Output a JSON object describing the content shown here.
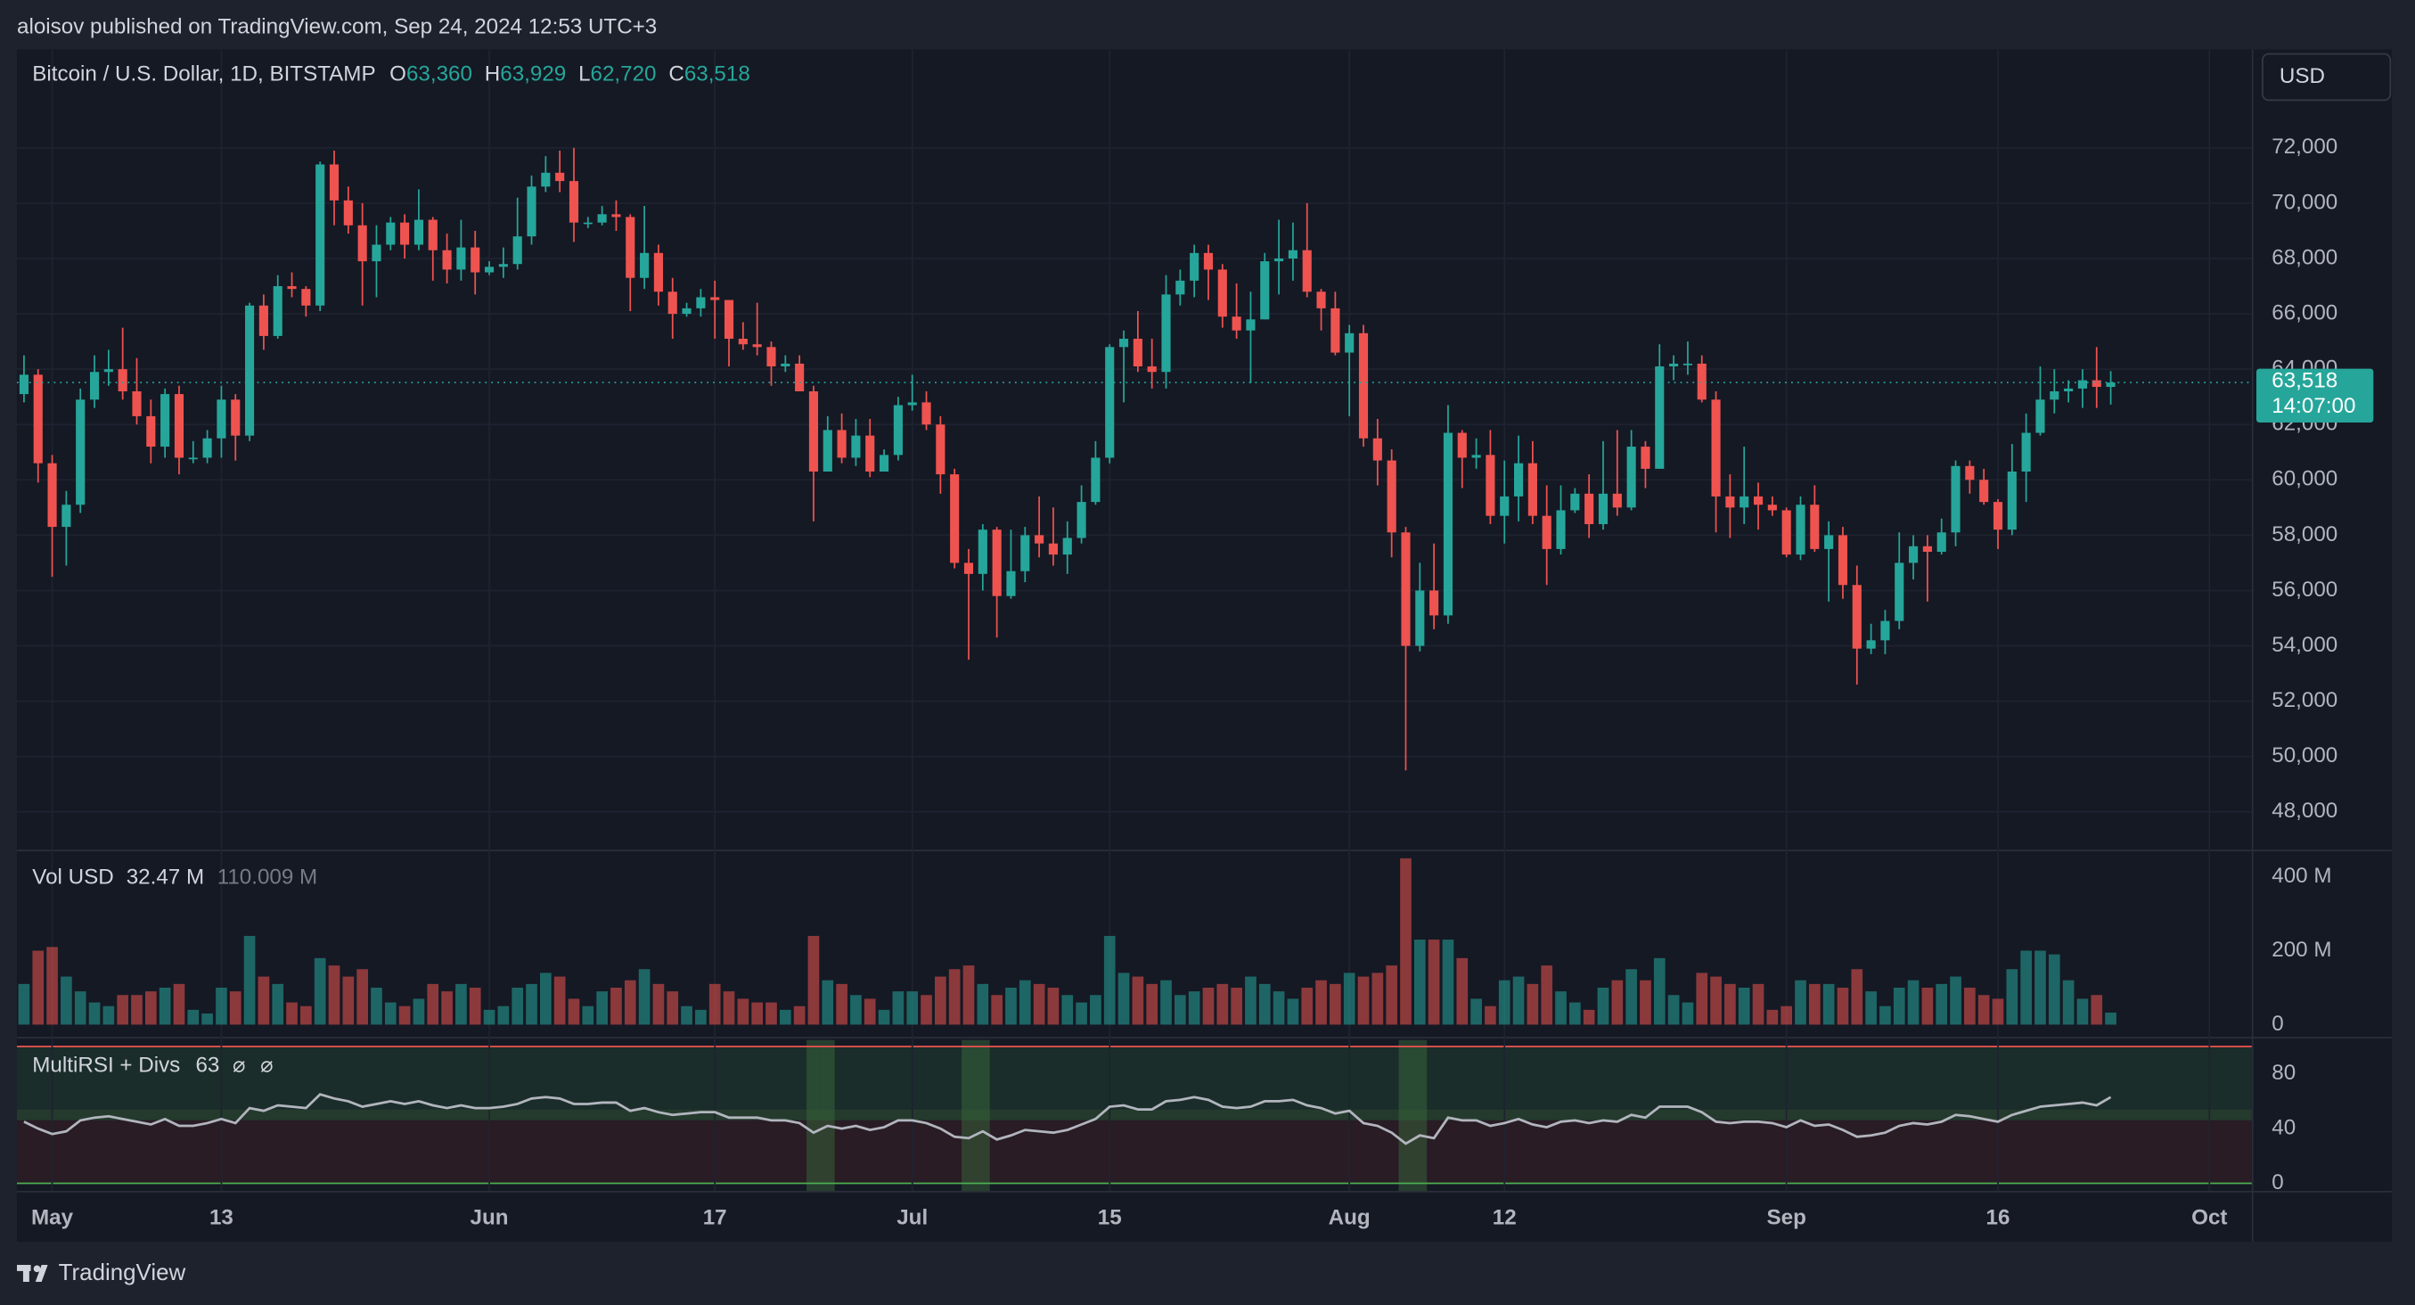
{
  "header": {
    "published": "aloisov published on TradingView.com, Sep 24, 2024 12:53 UTC+3",
    "symbol": "Bitcoin / U.S. Dollar, 1D, BITSTAMP",
    "ohlc_legend": [
      {
        "key": "O",
        "value": "63,360"
      },
      {
        "key": "H",
        "value": "63,929"
      },
      {
        "key": "L",
        "value": "62,720"
      },
      {
        "key": "C",
        "value": "63,518"
      }
    ],
    "currency": "USD"
  },
  "footer": {
    "brand": "TradingView"
  },
  "chart_data": [
    {
      "type": "candlestick",
      "grid": true,
      "xlim": [
        -0.5,
        158
      ],
      "xticks": [
        {
          "value": 2,
          "label": "May"
        },
        {
          "value": 14,
          "label": "13"
        },
        {
          "value": 33,
          "label": "Jun"
        },
        {
          "value": 49,
          "label": "17"
        },
        {
          "value": 63,
          "label": "Jul"
        },
        {
          "value": 77,
          "label": "15"
        },
        {
          "value": 94,
          "label": "Aug"
        },
        {
          "value": 105,
          "label": "12"
        },
        {
          "value": 125,
          "label": "Sep"
        },
        {
          "value": 140,
          "label": "16"
        },
        {
          "value": 155,
          "label": "Oct"
        }
      ],
      "ylim": [
        46660,
        75560
      ],
      "yticks": [
        {
          "value": 48000,
          "label": "48,000"
        },
        {
          "value": 50000,
          "label": "50,000"
        },
        {
          "value": 52000,
          "label": "52,000"
        },
        {
          "value": 54000,
          "label": "54,000"
        },
        {
          "value": 56000,
          "label": "56,000"
        },
        {
          "value": 58000,
          "label": "58,000"
        },
        {
          "value": 60000,
          "label": "60,000"
        },
        {
          "value": 62000,
          "label": "62,000"
        },
        {
          "value": 64000,
          "label": "64,000"
        },
        {
          "value": 66000,
          "label": "66,000"
        },
        {
          "value": 68000,
          "label": "68,000"
        },
        {
          "value": 70000,
          "label": "70,000"
        },
        {
          "value": 72000,
          "label": "72,000"
        }
      ],
      "last_price_label": "63,518",
      "countdown": "14:07:00",
      "series": [
        {
          "up_color": "#26a69a",
          "down_color": "#ef5350",
          "open": [
            63100,
            63800,
            60600,
            58300,
            59100,
            62900,
            63900,
            64000,
            63200,
            62300,
            61200,
            63100,
            60800,
            60800,
            61500,
            62900,
            61600,
            66300,
            65200,
            67000,
            66900,
            66300,
            71400,
            70100,
            69200,
            67900,
            68500,
            69300,
            68500,
            69400,
            68300,
            67600,
            68400,
            67500,
            67700,
            67800,
            68800,
            70600,
            71100,
            70800,
            69300,
            69300,
            69600,
            69500,
            67300,
            68200,
            66800,
            66000,
            66200,
            66600,
            66500,
            65100,
            64900,
            64800,
            64100,
            64200,
            63200,
            60300,
            61800,
            60800,
            61600,
            60300,
            60900,
            62700,
            62800,
            62000,
            60200,
            57000,
            56600,
            58200,
            55800,
            56700,
            58000,
            57700,
            57300,
            57900,
            59200,
            60800,
            64800,
            65100,
            64100,
            63900,
            66700,
            67200,
            68200,
            67600,
            65900,
            65400,
            65800,
            67900,
            68000,
            68300,
            66800,
            66200,
            64600,
            65300,
            61500,
            60700,
            58100,
            54000,
            56000,
            55100,
            61700,
            60800,
            60900,
            58700,
            59400,
            60600,
            58700,
            57500,
            58900,
            59500,
            58400,
            59500,
            59000,
            61200,
            60400,
            64100,
            64200,
            64200,
            62900,
            59400,
            59000,
            59400,
            59100,
            58900,
            57300,
            59100,
            57500,
            58000,
            56200,
            53900,
            54200,
            54900,
            57000,
            57600,
            57400,
            58100,
            60500,
            60000,
            59200,
            58200,
            60300,
            61700,
            62900,
            63200,
            63300,
            63600,
            63360
          ],
          "high": [
            64500,
            64000,
            60900,
            59600,
            63300,
            64500,
            64700,
            65500,
            64400,
            62900,
            63300,
            63400,
            61400,
            61800,
            63400,
            63100,
            66400,
            66700,
            67400,
            67500,
            67000,
            71500,
            71900,
            70600,
            70000,
            69200,
            69500,
            69600,
            70500,
            69500,
            68900,
            69400,
            69000,
            67900,
            68400,
            70200,
            71000,
            71700,
            71900,
            72000,
            69500,
            69900,
            70100,
            69600,
            69900,
            68500,
            67300,
            66400,
            66900,
            67200,
            66500,
            65700,
            66400,
            65000,
            64500,
            64500,
            63400,
            62300,
            62400,
            62200,
            62200,
            61100,
            63000,
            63800,
            63200,
            62300,
            60400,
            57500,
            58400,
            58300,
            58200,
            58300,
            59400,
            59000,
            58500,
            59800,
            61400,
            64900,
            65400,
            66100,
            65100,
            67400,
            67600,
            68500,
            68500,
            67800,
            67100,
            66800,
            68200,
            69400,
            69300,
            70000,
            66900,
            66800,
            65600,
            65600,
            62200,
            61100,
            58300,
            57000,
            57700,
            62700,
            61800,
            61500,
            61800,
            60700,
            61600,
            61400,
            59800,
            59800,
            59700,
            60200,
            61400,
            61800,
            61800,
            61400,
            64900,
            64500,
            65000,
            64500,
            63200,
            60200,
            61200,
            59900,
            59400,
            59000,
            59400,
            59800,
            58500,
            58300,
            56900,
            54800,
            55300,
            58100,
            58000,
            58000,
            58600,
            60700,
            60700,
            60400,
            59300,
            61300,
            62400,
            64100,
            64000,
            63600,
            64000,
            64800,
            63929
          ],
          "low": [
            62800,
            59900,
            56500,
            56900,
            58800,
            62600,
            63400,
            62900,
            62000,
            60600,
            60800,
            60200,
            60600,
            60600,
            60800,
            60700,
            61400,
            64700,
            65100,
            66600,
            65900,
            66100,
            69200,
            68900,
            66300,
            66600,
            68300,
            68000,
            68300,
            67200,
            67100,
            67200,
            66700,
            67400,
            67300,
            67600,
            68500,
            70400,
            70400,
            68600,
            69100,
            69200,
            69000,
            66100,
            66900,
            66300,
            65100,
            65900,
            65900,
            65100,
            64100,
            64700,
            64500,
            63400,
            63900,
            63200,
            58500,
            60300,
            60600,
            60500,
            60100,
            60300,
            60700,
            62500,
            61800,
            59500,
            56800,
            53500,
            56000,
            54300,
            55700,
            56300,
            57200,
            56900,
            56600,
            57700,
            59100,
            60600,
            62800,
            63900,
            63300,
            63300,
            66300,
            66600,
            66500,
            65500,
            65100,
            63500,
            65800,
            66700,
            67200,
            66600,
            65400,
            64500,
            62300,
            61200,
            59800,
            57200,
            49500,
            53800,
            54600,
            54800,
            59700,
            60400,
            58400,
            57700,
            58500,
            58400,
            56200,
            57300,
            58800,
            57900,
            58200,
            58700,
            58900,
            59700,
            60400,
            63600,
            63800,
            62800,
            58100,
            57900,
            58400,
            58200,
            58700,
            57200,
            57100,
            57400,
            55600,
            55700,
            52600,
            53700,
            53700,
            54600,
            56400,
            55600,
            57300,
            57600,
            59500,
            59100,
            57500,
            58000,
            59200,
            61600,
            62400,
            62800,
            62600,
            62600,
            62720
          ],
          "close": [
            63800,
            60600,
            58300,
            59100,
            62900,
            63900,
            64000,
            63200,
            62300,
            61200,
            63100,
            60800,
            60800,
            61500,
            62900,
            61600,
            66300,
            65200,
            67000,
            66900,
            66300,
            71400,
            70100,
            69200,
            67900,
            68500,
            69300,
            68500,
            69400,
            68300,
            67600,
            68400,
            67500,
            67700,
            67800,
            68800,
            70600,
            71100,
            70800,
            69300,
            69300,
            69600,
            69500,
            67300,
            68200,
            66800,
            66000,
            66200,
            66600,
            66500,
            65100,
            64900,
            64800,
            64100,
            64200,
            63200,
            60300,
            61800,
            60800,
            61600,
            60300,
            60900,
            62700,
            62800,
            62000,
            60200,
            57000,
            56600,
            58200,
            55800,
            56700,
            58000,
            57700,
            57300,
            57900,
            59200,
            60800,
            64800,
            65100,
            64100,
            63900,
            66700,
            67200,
            68200,
            67600,
            65900,
            65400,
            65800,
            67900,
            68000,
            68300,
            66800,
            66200,
            64600,
            65300,
            61500,
            60700,
            58100,
            54000,
            56000,
            55100,
            61700,
            60800,
            60900,
            58700,
            59400,
            60600,
            58700,
            57500,
            58900,
            59500,
            58400,
            59500,
            59000,
            61200,
            60400,
            64100,
            64200,
            64200,
            62900,
            59400,
            59000,
            59400,
            59100,
            58900,
            57300,
            59100,
            57500,
            58000,
            56200,
            53900,
            54200,
            54900,
            57000,
            57600,
            57400,
            58100,
            60500,
            60000,
            59200,
            58200,
            60300,
            61700,
            62900,
            63200,
            63300,
            63600,
            63360,
            63518
          ]
        }
      ]
    },
    {
      "type": "bar",
      "title": "Vol USD",
      "legend_values": [
        "32.47 M",
        "110.009 M"
      ],
      "opacity": 0.55,
      "ylim": [
        -29,
        467
      ],
      "yticks": [
        0,
        {
          "value": 200,
          "label": "200 M"
        },
        {
          "value": 400,
          "label": "400 M"
        }
      ],
      "values": [
        110,
        200,
        210,
        130,
        90,
        60,
        50,
        80,
        80,
        90,
        100,
        110,
        40,
        30,
        100,
        90,
        240,
        130,
        110,
        60,
        50,
        180,
        160,
        130,
        150,
        100,
        60,
        50,
        70,
        110,
        90,
        110,
        100,
        40,
        50,
        100,
        110,
        140,
        130,
        70,
        50,
        90,
        100,
        120,
        150,
        110,
        90,
        50,
        40,
        110,
        90,
        70,
        60,
        60,
        40,
        50,
        240,
        120,
        110,
        80,
        70,
        40,
        90,
        90,
        80,
        130,
        150,
        160,
        110,
        80,
        100,
        120,
        110,
        100,
        80,
        60,
        80,
        240,
        140,
        130,
        110,
        120,
        80,
        90,
        100,
        110,
        100,
        130,
        110,
        90,
        70,
        100,
        120,
        110,
        140,
        130,
        140,
        160,
        450,
        230,
        230,
        230,
        180,
        70,
        50,
        120,
        130,
        110,
        160,
        90,
        60,
        40,
        100,
        120,
        150,
        120,
        180,
        80,
        60,
        140,
        130,
        110,
        100,
        110,
        40,
        50,
        120,
        110,
        110,
        100,
        150,
        90,
        50,
        100,
        120,
        100,
        110,
        130,
        100,
        80,
        70,
        150,
        200,
        200,
        190,
        120,
        70,
        80,
        32.47
      ]
    },
    {
      "type": "line",
      "title": "MultiRSI + Divs",
      "legend_symbols": [
        "⌀",
        "⌀"
      ],
      "color": "#b2b5be",
      "ylim": [
        -5.6,
        104.8
      ],
      "yticks": [
        0,
        40,
        80
      ],
      "bands": [
        {
          "from": 54,
          "to": 100,
          "color": "#1a2d2a"
        },
        {
          "from": 46,
          "to": 54,
          "color": "#243a2d"
        },
        {
          "from": 0,
          "to": 46,
          "color": "#291c25"
        }
      ],
      "upper_line": {
        "value": 100,
        "color": "#ef5350"
      },
      "lower_line": {
        "value": 0,
        "color": "#4caf50"
      },
      "divergence_days": [
        56,
        57,
        67,
        68,
        98,
        99
      ],
      "divergence_color": "#3b6e3f",
      "values": [
        45,
        40,
        36,
        38,
        46,
        48,
        49,
        47,
        45,
        43,
        47,
        42,
        42,
        44,
        47,
        44,
        55,
        53,
        57,
        56,
        55,
        65,
        62,
        60,
        56,
        58,
        60,
        58,
        60,
        57,
        55,
        57,
        55,
        55,
        56,
        58,
        62,
        63,
        62,
        58,
        58,
        59,
        59,
        53,
        55,
        52,
        50,
        51,
        52,
        52,
        48,
        48,
        48,
        46,
        46,
        44,
        37,
        42,
        40,
        42,
        39,
        41,
        46,
        46,
        44,
        40,
        34,
        33,
        38,
        32,
        35,
        39,
        38,
        37,
        39,
        43,
        47,
        56,
        57,
        54,
        54,
        60,
        61,
        63,
        61,
        56,
        55,
        56,
        60,
        60,
        61,
        57,
        55,
        51,
        53,
        44,
        42,
        37,
        29,
        35,
        33,
        48,
        46,
        46,
        42,
        44,
        47,
        43,
        41,
        45,
        46,
        44,
        46,
        45,
        50,
        48,
        56,
        56,
        56,
        52,
        45,
        44,
        45,
        45,
        44,
        41,
        46,
        42,
        43,
        39,
        34,
        35,
        37,
        42,
        44,
        43,
        45,
        50,
        49,
        47,
        45,
        50,
        53,
        56,
        57,
        58,
        59,
        57,
        63
      ]
    }
  ]
}
